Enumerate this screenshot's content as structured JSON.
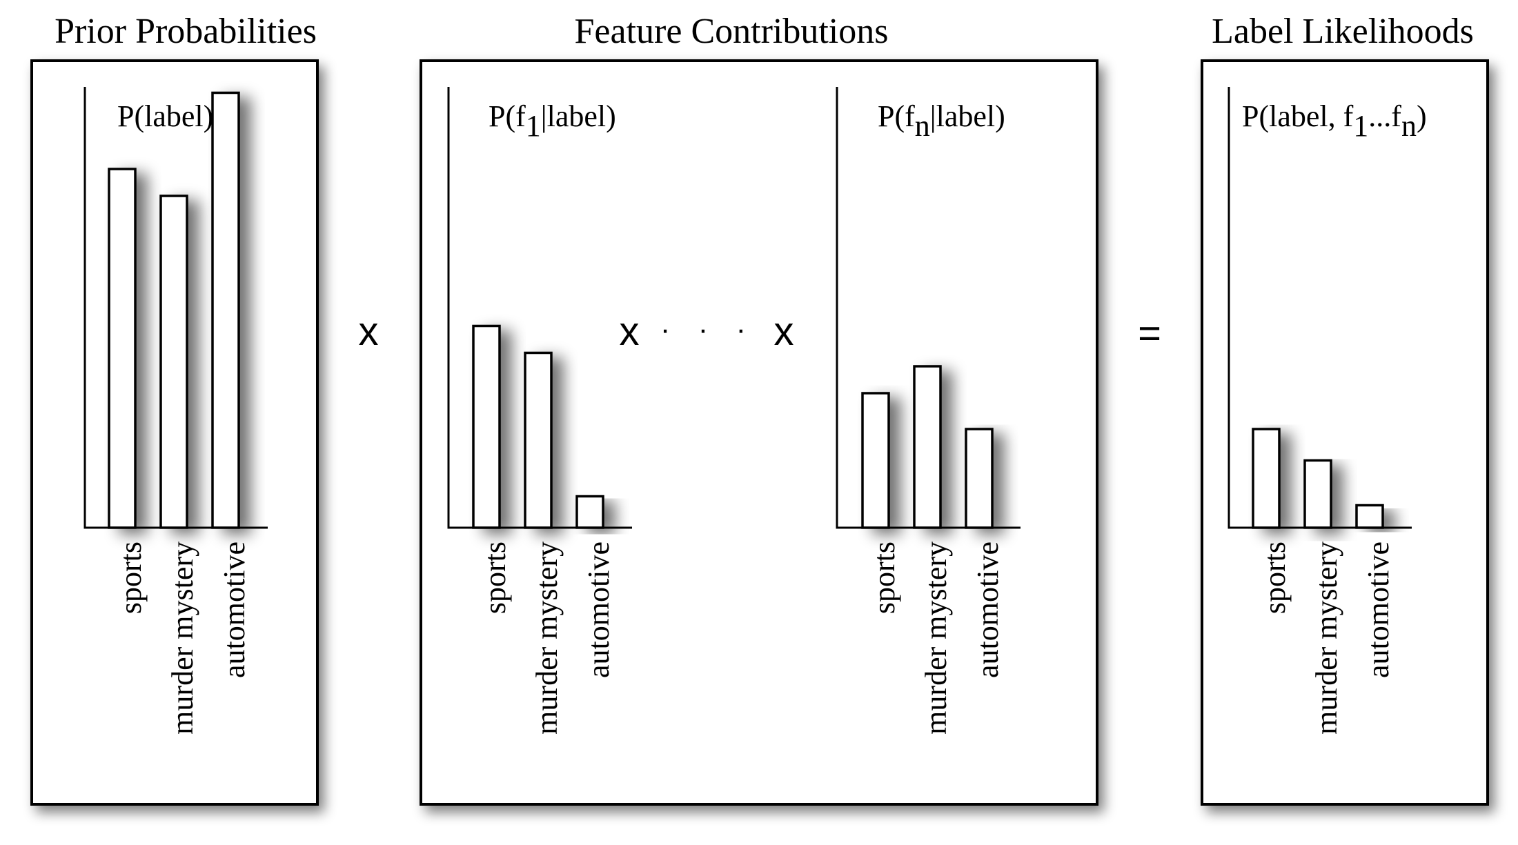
{
  "sections": {
    "priors": {
      "title": "Prior Probabilities"
    },
    "features": {
      "title": "Feature Contributions"
    },
    "likelihoods": {
      "title": "Label Likelihoods"
    }
  },
  "charts": [
    {
      "title_main": "P(label)",
      "categories": [
        "sports",
        "murder mystery",
        "automotive"
      ]
    },
    {
      "title_pre": "P(f",
      "title_sub": "1",
      "title_post": "|label)",
      "categories": [
        "sports",
        "murder mystery",
        "automotive"
      ]
    },
    {
      "title_pre": "P(f",
      "title_sub": "n",
      "title_post": "|label)",
      "categories": [
        "sports",
        "murder mystery",
        "automotive"
      ]
    },
    {
      "title_pre": "P(label, f",
      "title_sub": "1",
      "title_mid": "...f",
      "title_sub2": "n",
      "title_post": ")",
      "categories": [
        "sports",
        "murder mystery",
        "automotive"
      ]
    }
  ],
  "operators": {
    "times_1": "x",
    "times_2": "x",
    "ellipsis": "· · ·",
    "times_3": "x",
    "equals": "="
  },
  "chart_data": [
    {
      "type": "bar",
      "title": "P(label)",
      "categories": [
        "sports",
        "murder mystery",
        "automotive"
      ],
      "values": [
        0.8,
        0.74,
        0.97
      ],
      "ylim": [
        0,
        1.0
      ]
    },
    {
      "type": "bar",
      "title": "P(f1|label)",
      "categories": [
        "sports",
        "murder mystery",
        "automotive"
      ],
      "values": [
        0.45,
        0.39,
        0.07
      ],
      "ylim": [
        0,
        1.0
      ]
    },
    {
      "type": "bar",
      "title": "P(fn|label)",
      "categories": [
        "sports",
        "murder mystery",
        "automotive"
      ],
      "values": [
        0.3,
        0.36,
        0.22
      ],
      "ylim": [
        0,
        1.0
      ]
    },
    {
      "type": "bar",
      "title": "P(label, f1...fn)",
      "categories": [
        "sports",
        "murder mystery",
        "automotive"
      ],
      "values": [
        0.22,
        0.15,
        0.05
      ],
      "ylim": [
        0,
        1.0
      ]
    }
  ]
}
